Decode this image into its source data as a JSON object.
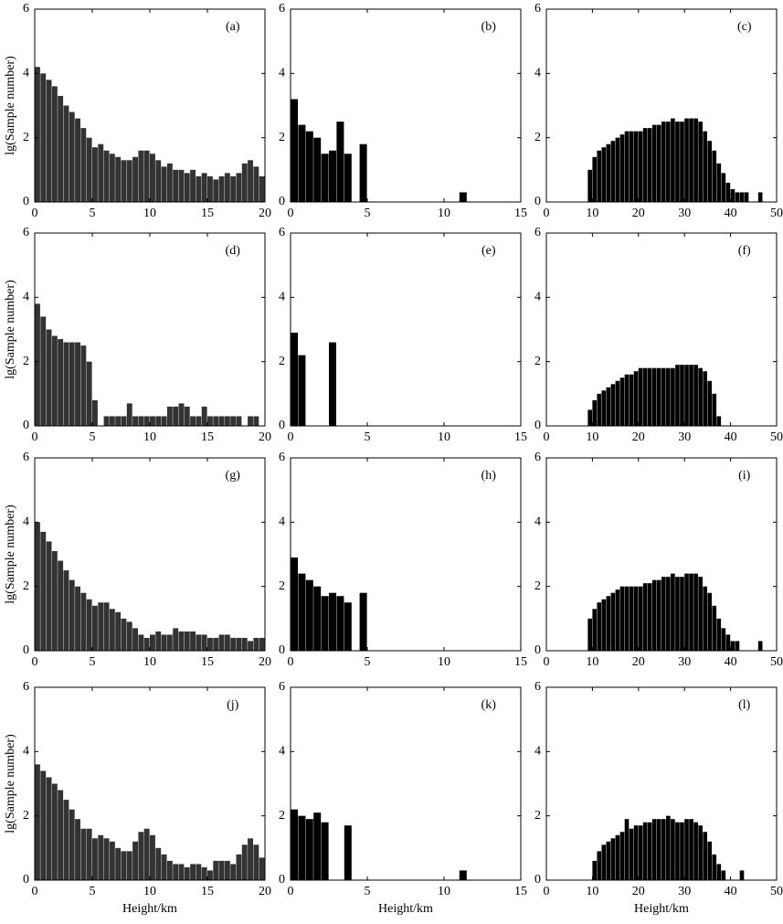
{
  "chart_data": [
    {
      "type": "histogram",
      "annotation": "(a)",
      "ylabel": "lg(Sample number)",
      "color": "#333333",
      "bins": [
        0,
        0.5,
        1,
        1.5,
        2,
        2.5,
        3,
        3.5,
        4,
        4.5,
        5,
        5.5,
        6,
        6.5,
        7,
        7.5,
        8,
        8.5,
        9,
        9.5,
        10,
        10.5,
        11,
        11.5,
        12,
        12.5,
        13,
        13.5,
        14,
        14.5,
        15,
        15.5,
        16,
        16.5,
        17,
        17.5,
        18,
        18.5,
        19,
        19.5,
        20
      ],
      "values": [
        4.2,
        4.0,
        3.8,
        3.6,
        3.3,
        3.0,
        2.8,
        2.6,
        2.3,
        2.0,
        1.7,
        1.8,
        1.6,
        1.5,
        1.4,
        1.3,
        1.3,
        1.4,
        1.6,
        1.6,
        1.5,
        1.3,
        1.1,
        1.2,
        1.0,
        1.0,
        0.9,
        1.0,
        0.8,
        0.9,
        0.8,
        0.7,
        0.8,
        0.9,
        0.8,
        0.9,
        1.2,
        1.3,
        1.1,
        0.8
      ],
      "xlim": [
        0,
        20
      ],
      "xticks": [
        0,
        5,
        10,
        15,
        20
      ],
      "ylim": [
        0,
        6
      ],
      "yticks": [
        0,
        2,
        4,
        6
      ]
    },
    {
      "type": "histogram",
      "annotation": "(b)",
      "color": "#000000",
      "bins": [
        0,
        0.5,
        1,
        1.5,
        2,
        2.5,
        3,
        3.5,
        4,
        4.5,
        5,
        5.5,
        6,
        6.5,
        7,
        7.5,
        8,
        8.5,
        9,
        9.5,
        10,
        10.5,
        11,
        11.5,
        12,
        12.5,
        13,
        13.5,
        14,
        14.5,
        15
      ],
      "values": [
        3.2,
        2.4,
        2.2,
        2.0,
        1.5,
        1.6,
        2.5,
        1.5,
        0,
        1.8,
        0,
        0,
        0,
        0,
        0,
        0,
        0,
        0,
        0,
        0,
        0,
        0,
        0.3,
        0,
        0,
        0,
        0,
        0,
        0,
        0
      ],
      "xlim": [
        0,
        15
      ],
      "xticks": [
        0,
        5,
        10,
        15
      ],
      "ylim": [
        0,
        6
      ],
      "yticks": [
        0,
        2,
        4,
        6
      ]
    },
    {
      "type": "histogram",
      "annotation": "(c)",
      "color": "#000000",
      "bins": [
        0,
        1,
        2,
        3,
        4,
        5,
        6,
        7,
        8,
        9,
        10,
        11,
        12,
        13,
        14,
        15,
        16,
        17,
        18,
        19,
        20,
        21,
        22,
        23,
        24,
        25,
        26,
        27,
        28,
        29,
        30,
        31,
        32,
        33,
        34,
        35,
        36,
        37,
        38,
        39,
        40,
        41,
        42,
        43,
        44,
        45,
        46,
        47,
        48,
        49,
        50
      ],
      "values": [
        0,
        0,
        0,
        0,
        0,
        0,
        0,
        0,
        0,
        1.0,
        1.4,
        1.6,
        1.7,
        1.8,
        1.9,
        2.0,
        2.1,
        2.2,
        2.2,
        2.2,
        2.2,
        2.3,
        2.3,
        2.4,
        2.4,
        2.5,
        2.5,
        2.6,
        2.5,
        2.5,
        2.6,
        2.6,
        2.6,
        2.5,
        2.2,
        1.9,
        1.6,
        1.2,
        0.9,
        0.6,
        0.4,
        0.3,
        0.3,
        0.3,
        0,
        0,
        0.3,
        0,
        0,
        0
      ],
      "xlim": [
        0,
        50
      ],
      "xticks": [
        0,
        10,
        20,
        30,
        40,
        50
      ],
      "ylim": [
        0,
        6
      ],
      "yticks": [
        0,
        2,
        4,
        6
      ]
    },
    {
      "type": "histogram",
      "annotation": "(d)",
      "ylabel": "lg(Sample number)",
      "color": "#333333",
      "bins": [
        0,
        0.5,
        1,
        1.5,
        2,
        2.5,
        3,
        3.5,
        4,
        4.5,
        5,
        5.5,
        6,
        6.5,
        7,
        7.5,
        8,
        8.5,
        9,
        9.5,
        10,
        10.5,
        11,
        11.5,
        12,
        12.5,
        13,
        13.5,
        14,
        14.5,
        15,
        15.5,
        16,
        16.5,
        17,
        17.5,
        18,
        18.5,
        19,
        19.5,
        20
      ],
      "values": [
        3.8,
        3.4,
        3.0,
        2.8,
        2.7,
        2.6,
        2.6,
        2.6,
        2.5,
        2.0,
        0.8,
        0,
        0.3,
        0.3,
        0.3,
        0.3,
        0.7,
        0.3,
        0.3,
        0.3,
        0.3,
        0.3,
        0.3,
        0.6,
        0.6,
        0.7,
        0.6,
        0.3,
        0.3,
        0.6,
        0.3,
        0.3,
        0.3,
        0.3,
        0.3,
        0.3,
        0,
        0.3,
        0.3,
        0
      ],
      "xlim": [
        0,
        20
      ],
      "xticks": [
        0,
        5,
        10,
        15,
        20
      ],
      "ylim": [
        0,
        6
      ],
      "yticks": [
        0,
        2,
        4,
        6
      ]
    },
    {
      "type": "histogram",
      "annotation": "(e)",
      "color": "#000000",
      "bins": [
        0,
        0.5,
        1,
        1.5,
        2,
        2.5,
        3,
        3.5,
        4,
        4.5,
        5,
        5.5,
        6,
        6.5,
        7,
        7.5,
        8,
        8.5,
        9,
        9.5,
        10,
        10.5,
        11,
        11.5,
        12,
        12.5,
        13,
        13.5,
        14,
        14.5,
        15
      ],
      "values": [
        2.9,
        2.2,
        0,
        0,
        0,
        2.6,
        0,
        0,
        0,
        0,
        0,
        0,
        0,
        0,
        0,
        0,
        0,
        0,
        0,
        0,
        0,
        0,
        0,
        0,
        0,
        0,
        0,
        0,
        0,
        0
      ],
      "xlim": [
        0,
        15
      ],
      "xticks": [
        0,
        5,
        10,
        15
      ],
      "ylim": [
        0,
        6
      ],
      "yticks": [
        0,
        2,
        4,
        6
      ]
    },
    {
      "type": "histogram",
      "annotation": "(f)",
      "color": "#000000",
      "bins": [
        0,
        1,
        2,
        3,
        4,
        5,
        6,
        7,
        8,
        9,
        10,
        11,
        12,
        13,
        14,
        15,
        16,
        17,
        18,
        19,
        20,
        21,
        22,
        23,
        24,
        25,
        26,
        27,
        28,
        29,
        30,
        31,
        32,
        33,
        34,
        35,
        36,
        37,
        38,
        39,
        40,
        41,
        42,
        43,
        44,
        45,
        46,
        47,
        48,
        49,
        50
      ],
      "values": [
        0,
        0,
        0,
        0,
        0,
        0,
        0,
        0,
        0,
        0.5,
        0.8,
        1.0,
        1.1,
        1.2,
        1.3,
        1.4,
        1.5,
        1.6,
        1.6,
        1.7,
        1.8,
        1.8,
        1.8,
        1.8,
        1.8,
        1.8,
        1.8,
        1.8,
        1.9,
        1.9,
        1.9,
        1.9,
        1.9,
        1.8,
        1.7,
        1.4,
        1.0,
        0.3,
        0,
        0,
        0,
        0,
        0,
        0,
        0,
        0,
        0,
        0,
        0,
        0
      ],
      "xlim": [
        0,
        50
      ],
      "xticks": [
        0,
        10,
        20,
        30,
        40,
        50
      ],
      "ylim": [
        0,
        6
      ],
      "yticks": [
        0,
        2,
        4,
        6
      ]
    },
    {
      "type": "histogram",
      "annotation": "(g)",
      "ylabel": "lg(Sample number)",
      "color": "#333333",
      "bins": [
        0,
        0.5,
        1,
        1.5,
        2,
        2.5,
        3,
        3.5,
        4,
        4.5,
        5,
        5.5,
        6,
        6.5,
        7,
        7.5,
        8,
        8.5,
        9,
        9.5,
        10,
        10.5,
        11,
        11.5,
        12,
        12.5,
        13,
        13.5,
        14,
        14.5,
        15,
        15.5,
        16,
        16.5,
        17,
        17.5,
        18,
        18.5,
        19,
        19.5,
        20
      ],
      "values": [
        4.0,
        3.7,
        3.4,
        3.1,
        2.8,
        2.5,
        2.2,
        2.0,
        1.8,
        1.6,
        1.4,
        1.5,
        1.5,
        1.3,
        1.2,
        1.0,
        0.9,
        0.7,
        0.5,
        0.4,
        0.5,
        0.6,
        0.5,
        0.5,
        0.7,
        0.6,
        0.6,
        0.6,
        0.5,
        0.5,
        0.4,
        0.4,
        0.5,
        0.5,
        0.4,
        0.4,
        0.4,
        0.3,
        0.4,
        0.4
      ],
      "xlim": [
        0,
        20
      ],
      "xticks": [
        0,
        5,
        10,
        15,
        20
      ],
      "ylim": [
        0,
        6
      ],
      "yticks": [
        0,
        2,
        4,
        6
      ]
    },
    {
      "type": "histogram",
      "annotation": "(h)",
      "color": "#000000",
      "bins": [
        0,
        0.5,
        1,
        1.5,
        2,
        2.5,
        3,
        3.5,
        4,
        4.5,
        5,
        5.5,
        6,
        6.5,
        7,
        7.5,
        8,
        8.5,
        9,
        9.5,
        10,
        10.5,
        11,
        11.5,
        12,
        12.5,
        13,
        13.5,
        14,
        14.5,
        15
      ],
      "values": [
        2.9,
        2.4,
        2.2,
        2.0,
        1.7,
        1.8,
        1.7,
        1.5,
        0,
        1.8,
        0,
        0,
        0,
        0,
        0,
        0,
        0,
        0,
        0,
        0,
        0,
        0,
        0,
        0,
        0,
        0,
        0,
        0,
        0,
        0
      ],
      "xlim": [
        0,
        15
      ],
      "xticks": [
        0,
        5,
        10,
        15
      ],
      "ylim": [
        0,
        6
      ],
      "yticks": [
        0,
        2,
        4,
        6
      ]
    },
    {
      "type": "histogram",
      "annotation": "(i)",
      "color": "#000000",
      "bins": [
        0,
        1,
        2,
        3,
        4,
        5,
        6,
        7,
        8,
        9,
        10,
        11,
        12,
        13,
        14,
        15,
        16,
        17,
        18,
        19,
        20,
        21,
        22,
        23,
        24,
        25,
        26,
        27,
        28,
        29,
        30,
        31,
        32,
        33,
        34,
        35,
        36,
        37,
        38,
        39,
        40,
        41,
        42,
        43,
        44,
        45,
        46,
        47,
        48,
        49,
        50
      ],
      "values": [
        0,
        0,
        0,
        0,
        0,
        0,
        0,
        0,
        0,
        1.0,
        1.3,
        1.5,
        1.6,
        1.7,
        1.8,
        1.9,
        2.0,
        2.0,
        2.0,
        2.0,
        2.0,
        2.1,
        2.1,
        2.2,
        2.2,
        2.3,
        2.3,
        2.4,
        2.3,
        2.3,
        2.4,
        2.4,
        2.4,
        2.3,
        2.0,
        1.8,
        1.4,
        1.0,
        0.7,
        0.5,
        0.3,
        0.3,
        0,
        0,
        0,
        0,
        0.3,
        0,
        0,
        0
      ],
      "xlim": [
        0,
        50
      ],
      "xticks": [
        0,
        10,
        20,
        30,
        40,
        50
      ],
      "ylim": [
        0,
        6
      ],
      "yticks": [
        0,
        2,
        4,
        6
      ]
    },
    {
      "type": "histogram",
      "annotation": "(j)",
      "ylabel": "lg(Sample number)",
      "xlabel": "Height/km",
      "color": "#333333",
      "bins": [
        0,
        0.5,
        1,
        1.5,
        2,
        2.5,
        3,
        3.5,
        4,
        4.5,
        5,
        5.5,
        6,
        6.5,
        7,
        7.5,
        8,
        8.5,
        9,
        9.5,
        10,
        10.5,
        11,
        11.5,
        12,
        12.5,
        13,
        13.5,
        14,
        14.5,
        15,
        15.5,
        16,
        16.5,
        17,
        17.5,
        18,
        18.5,
        19,
        19.5,
        20
      ],
      "values": [
        3.6,
        3.4,
        3.2,
        3.0,
        2.8,
        2.5,
        2.2,
        1.9,
        1.6,
        1.6,
        1.3,
        1.4,
        1.3,
        1.2,
        1.0,
        0.9,
        0.9,
        1.2,
        1.5,
        1.6,
        1.4,
        1.0,
        0.8,
        0.6,
        0.5,
        0.5,
        0.4,
        0.5,
        0.5,
        0.4,
        0.3,
        0.6,
        0.6,
        0.6,
        0.5,
        0.8,
        1.1,
        1.3,
        1.1,
        0.7
      ],
      "xlim": [
        0,
        20
      ],
      "xticks": [
        0,
        5,
        10,
        15,
        20
      ],
      "ylim": [
        0,
        6
      ],
      "yticks": [
        0,
        2,
        4,
        6
      ]
    },
    {
      "type": "histogram",
      "annotation": "(k)",
      "xlabel": "Height/km",
      "color": "#000000",
      "bins": [
        0,
        0.5,
        1,
        1.5,
        2,
        2.5,
        3,
        3.5,
        4,
        4.5,
        5,
        5.5,
        6,
        6.5,
        7,
        7.5,
        8,
        8.5,
        9,
        9.5,
        10,
        10.5,
        11,
        11.5,
        12,
        12.5,
        13,
        13.5,
        14,
        14.5,
        15
      ],
      "values": [
        2.2,
        2.0,
        1.9,
        2.1,
        1.8,
        0,
        0,
        1.7,
        0,
        0,
        0,
        0,
        0,
        0,
        0,
        0,
        0,
        0,
        0,
        0,
        0,
        0,
        0.3,
        0,
        0,
        0,
        0,
        0,
        0,
        0
      ],
      "xlim": [
        0,
        15
      ],
      "xticks": [
        0,
        5,
        10,
        15
      ],
      "ylim": [
        0,
        6
      ],
      "yticks": [
        0,
        2,
        4,
        6
      ]
    },
    {
      "type": "histogram",
      "annotation": "(l)",
      "xlabel": "Height/km",
      "color": "#000000",
      "bins": [
        0,
        1,
        2,
        3,
        4,
        5,
        6,
        7,
        8,
        9,
        10,
        11,
        12,
        13,
        14,
        15,
        16,
        17,
        18,
        19,
        20,
        21,
        22,
        23,
        24,
        25,
        26,
        27,
        28,
        29,
        30,
        31,
        32,
        33,
        34,
        35,
        36,
        37,
        38,
        39,
        40,
        41,
        42,
        43,
        44,
        45,
        46,
        47,
        48,
        49,
        50
      ],
      "values": [
        0,
        0,
        0,
        0,
        0,
        0,
        0,
        0,
        0,
        0,
        0.6,
        0.9,
        1.1,
        1.2,
        1.3,
        1.4,
        1.5,
        1.9,
        1.6,
        1.7,
        1.7,
        1.8,
        1.8,
        1.9,
        1.9,
        1.9,
        2.0,
        1.9,
        1.8,
        1.8,
        1.9,
        1.9,
        1.8,
        1.7,
        1.5,
        1.2,
        0.8,
        0.5,
        0.3,
        0,
        0,
        0,
        0.3,
        0,
        0,
        0,
        0,
        0,
        0,
        0
      ],
      "xlim": [
        0,
        50
      ],
      "xticks": [
        0,
        10,
        20,
        30,
        40,
        50
      ],
      "ylim": [
        0,
        6
      ],
      "yticks": [
        0,
        2,
        4,
        6
      ]
    }
  ]
}
